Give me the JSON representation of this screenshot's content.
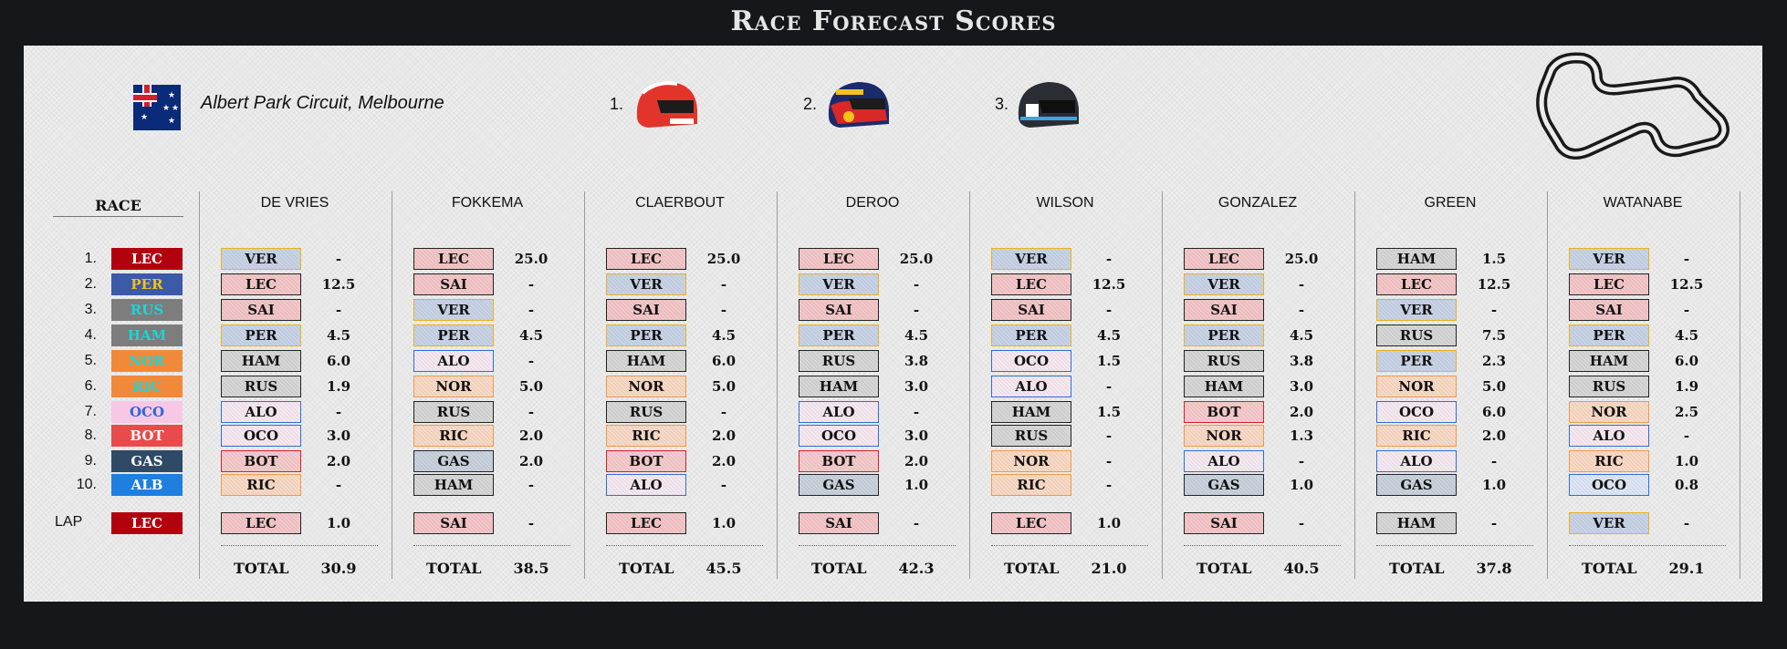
{
  "title": "Race Forecast Scores",
  "race": {
    "circuit": "Albert Park Circuit, Melbourne",
    "header": "RACE",
    "lap_label": "LAP",
    "podium": [
      "1.",
      "2.",
      "3."
    ]
  },
  "results": [
    {
      "pos": "1.",
      "driver": "LEC",
      "bg": "#b3000e",
      "fg": "#ffffff"
    },
    {
      "pos": "2.",
      "driver": "PER",
      "bg": "#3b5aa8",
      "fg": "#f2c21b"
    },
    {
      "pos": "3.",
      "driver": "RUS",
      "bg": "#7d7d7d",
      "fg": "#1fd4d4"
    },
    {
      "pos": "4.",
      "driver": "HAM",
      "bg": "#7d7d7d",
      "fg": "#1fd4d4"
    },
    {
      "pos": "5.",
      "driver": "NOR",
      "bg": "#f08a3a",
      "fg": "#1fd4d4"
    },
    {
      "pos": "6.",
      "driver": "RIC",
      "bg": "#f08a3a",
      "fg": "#1fd4d4"
    },
    {
      "pos": "7.",
      "driver": "OCO",
      "bg": "#f7c8e6",
      "fg": "#2b67d9"
    },
    {
      "pos": "8.",
      "driver": "BOT",
      "bg": "#e94a4a",
      "fg": "#ffffff"
    },
    {
      "pos": "9.",
      "driver": "GAS",
      "bg": "#2f4a66",
      "fg": "#ffffff"
    },
    {
      "pos": "10.",
      "driver": "ALB",
      "bg": "#1e7fe0",
      "fg": "#ffffff"
    }
  ],
  "fastest_lap": {
    "driver": "LEC",
    "bg": "#b3000e",
    "fg": "#ffffff"
  },
  "total_label": "TOTAL",
  "players": [
    {
      "name": "DE VRIES",
      "picks": [
        [
          "VER",
          "rbr",
          "-"
        ],
        [
          "LEC",
          "fer",
          "12.5"
        ],
        [
          "SAI",
          "fer",
          "-"
        ],
        [
          "PER",
          "rbr",
          "4.5"
        ],
        [
          "HAM",
          "mer",
          "6.0"
        ],
        [
          "RUS",
          "mer",
          "1.9"
        ],
        [
          "ALO",
          "alp",
          "-"
        ],
        [
          "OCO",
          "alp",
          "3.0"
        ],
        [
          "BOT",
          "alf",
          "2.0"
        ],
        [
          "RIC",
          "mcl",
          "-"
        ]
      ],
      "lap": [
        "LEC",
        "fer",
        "1.0"
      ],
      "total": "30.9"
    },
    {
      "name": "FOKKEMA",
      "picks": [
        [
          "LEC",
          "fer",
          "25.0"
        ],
        [
          "SAI",
          "fer",
          "-"
        ],
        [
          "VER",
          "rbr",
          "-"
        ],
        [
          "PER",
          "rbr",
          "4.5"
        ],
        [
          "ALO",
          "alp",
          "-"
        ],
        [
          "NOR",
          "mcl",
          "5.0"
        ],
        [
          "RUS",
          "mer",
          "-"
        ],
        [
          "RIC",
          "mcl",
          "2.0"
        ],
        [
          "GAS",
          "aph",
          "2.0"
        ],
        [
          "HAM",
          "mer",
          "-"
        ]
      ],
      "lap": [
        "SAI",
        "fer",
        "-"
      ],
      "total": "38.5"
    },
    {
      "name": "CLAERBOUT",
      "picks": [
        [
          "LEC",
          "fer",
          "25.0"
        ],
        [
          "VER",
          "rbr",
          "-"
        ],
        [
          "SAI",
          "fer",
          "-"
        ],
        [
          "PER",
          "rbr",
          "4.5"
        ],
        [
          "HAM",
          "mer",
          "6.0"
        ],
        [
          "NOR",
          "mcl",
          "5.0"
        ],
        [
          "RUS",
          "mer",
          "-"
        ],
        [
          "RIC",
          "mcl",
          "2.0"
        ],
        [
          "BOT",
          "alf",
          "2.0"
        ],
        [
          "ALO",
          "alp",
          "-"
        ]
      ],
      "lap": [
        "LEC",
        "fer",
        "1.0"
      ],
      "total": "45.5"
    },
    {
      "name": "DEROO",
      "picks": [
        [
          "LEC",
          "fer",
          "25.0"
        ],
        [
          "VER",
          "rbr",
          "-"
        ],
        [
          "SAI",
          "fer",
          "-"
        ],
        [
          "PER",
          "rbr",
          "4.5"
        ],
        [
          "RUS",
          "mer",
          "3.8"
        ],
        [
          "HAM",
          "mer",
          "3.0"
        ],
        [
          "ALO",
          "alp",
          "-"
        ],
        [
          "OCO",
          "alp",
          "3.0"
        ],
        [
          "BOT",
          "alf",
          "2.0"
        ],
        [
          "GAS",
          "aph",
          "1.0"
        ]
      ],
      "lap": [
        "SAI",
        "fer",
        "-"
      ],
      "total": "42.3"
    },
    {
      "name": "WILSON",
      "picks": [
        [
          "VER",
          "rbr",
          "-"
        ],
        [
          "LEC",
          "fer",
          "12.5"
        ],
        [
          "SAI",
          "fer",
          "-"
        ],
        [
          "PER",
          "rbr",
          "4.5"
        ],
        [
          "OCO",
          "alp",
          "1.5"
        ],
        [
          "ALO",
          "alp",
          "-"
        ],
        [
          "HAM",
          "mer",
          "1.5"
        ],
        [
          "RUS",
          "mer",
          "-"
        ],
        [
          "NOR",
          "mcl",
          "-"
        ],
        [
          "RIC",
          "mcl",
          "-"
        ]
      ],
      "lap": [
        "LEC",
        "fer",
        "1.0"
      ],
      "total": "21.0"
    },
    {
      "name": "GONZALEZ",
      "picks": [
        [
          "LEC",
          "fer",
          "25.0"
        ],
        [
          "VER",
          "rbr",
          "-"
        ],
        [
          "SAI",
          "fer",
          "-"
        ],
        [
          "PER",
          "rbr",
          "4.5"
        ],
        [
          "RUS",
          "mer",
          "3.8"
        ],
        [
          "HAM",
          "mer",
          "3.0"
        ],
        [
          "BOT",
          "alf",
          "2.0"
        ],
        [
          "NOR",
          "mcl",
          "1.3"
        ],
        [
          "ALO",
          "alp",
          "-"
        ],
        [
          "GAS",
          "aph",
          "1.0"
        ]
      ],
      "lap": [
        "SAI",
        "fer",
        "-"
      ],
      "total": "40.5"
    },
    {
      "name": "GREEN",
      "picks": [
        [
          "HAM",
          "mer",
          "1.5"
        ],
        [
          "LEC",
          "fer",
          "12.5"
        ],
        [
          "VER",
          "rbr",
          "-"
        ],
        [
          "RUS",
          "mer",
          "7.5"
        ],
        [
          "PER",
          "rbr",
          "2.3"
        ],
        [
          "NOR",
          "mcl",
          "5.0"
        ],
        [
          "OCO",
          "alp",
          "6.0"
        ],
        [
          "RIC",
          "mcl",
          "2.0"
        ],
        [
          "ALO",
          "alp",
          "-"
        ],
        [
          "GAS",
          "aph",
          "1.0"
        ]
      ],
      "lap": [
        "HAM",
        "mer",
        "-"
      ],
      "total": "37.8"
    },
    {
      "name": "WATANABE",
      "picks": [
        [
          "VER",
          "rbr",
          "-"
        ],
        [
          "LEC",
          "fer",
          "12.5"
        ],
        [
          "SAI",
          "fer",
          "-"
        ],
        [
          "PER",
          "rbr",
          "4.5"
        ],
        [
          "HAM",
          "mer",
          "6.0"
        ],
        [
          "RUS",
          "mer",
          "1.9"
        ],
        [
          "NOR",
          "mcl",
          "2.5"
        ],
        [
          "ALO",
          "alp",
          "-"
        ],
        [
          "RIC",
          "mcl",
          "1.0"
        ],
        [
          "OCO",
          "wil",
          "0.8"
        ]
      ],
      "lap": [
        "VER",
        "rbr",
        "-"
      ],
      "total": "29.1"
    }
  ]
}
